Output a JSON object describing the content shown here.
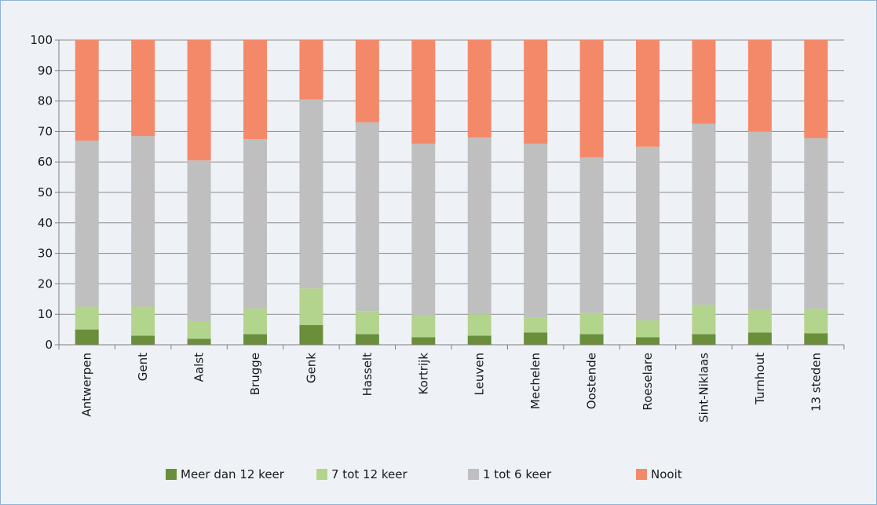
{
  "chart_data": {
    "type": "bar",
    "stacked": true,
    "categories": [
      "Antwerpen",
      "Gent",
      "Aalst",
      "Brugge",
      "Genk",
      "Hasselt",
      "Kortrijk",
      "Leuven",
      "Mechelen",
      "Oostende",
      "Roeselare",
      "Sint-Niklaas",
      "Turnhout",
      "13 steden"
    ],
    "series": [
      {
        "name": "Meer dan 12 keer",
        "color": "#6b8e3a",
        "values": [
          5,
          3,
          2,
          3.5,
          6.5,
          3.5,
          2.5,
          3,
          4,
          3.5,
          2.5,
          3.5,
          4,
          3.8
        ]
      },
      {
        "name": "7 tot 12 keer",
        "color": "#b3d48c",
        "values": [
          7.5,
          9.5,
          5.5,
          8.5,
          12,
          7.5,
          7,
          7,
          5,
          7,
          5.5,
          9.5,
          7.5,
          8
        ]
      },
      {
        "name": "1 tot 6 keer",
        "color": "#bfbfbf",
        "values": [
          54.5,
          56,
          53,
          55.5,
          62,
          62,
          56.5,
          58,
          57,
          51,
          57,
          59.5,
          58.5,
          56
        ]
      },
      {
        "name": "Nooit",
        "color": "#f4896a",
        "values": [
          33,
          31.5,
          39.5,
          32.5,
          19.5,
          27,
          34,
          32,
          34,
          38.5,
          35,
          27.5,
          30,
          32.2
        ]
      }
    ],
    "ylim": [
      0,
      100
    ],
    "yticks": [
      "0",
      "10",
      "20",
      "30",
      "40",
      "50",
      "60",
      "70",
      "80",
      "90",
      "100"
    ],
    "grid": true,
    "legend_position": "bottom"
  }
}
